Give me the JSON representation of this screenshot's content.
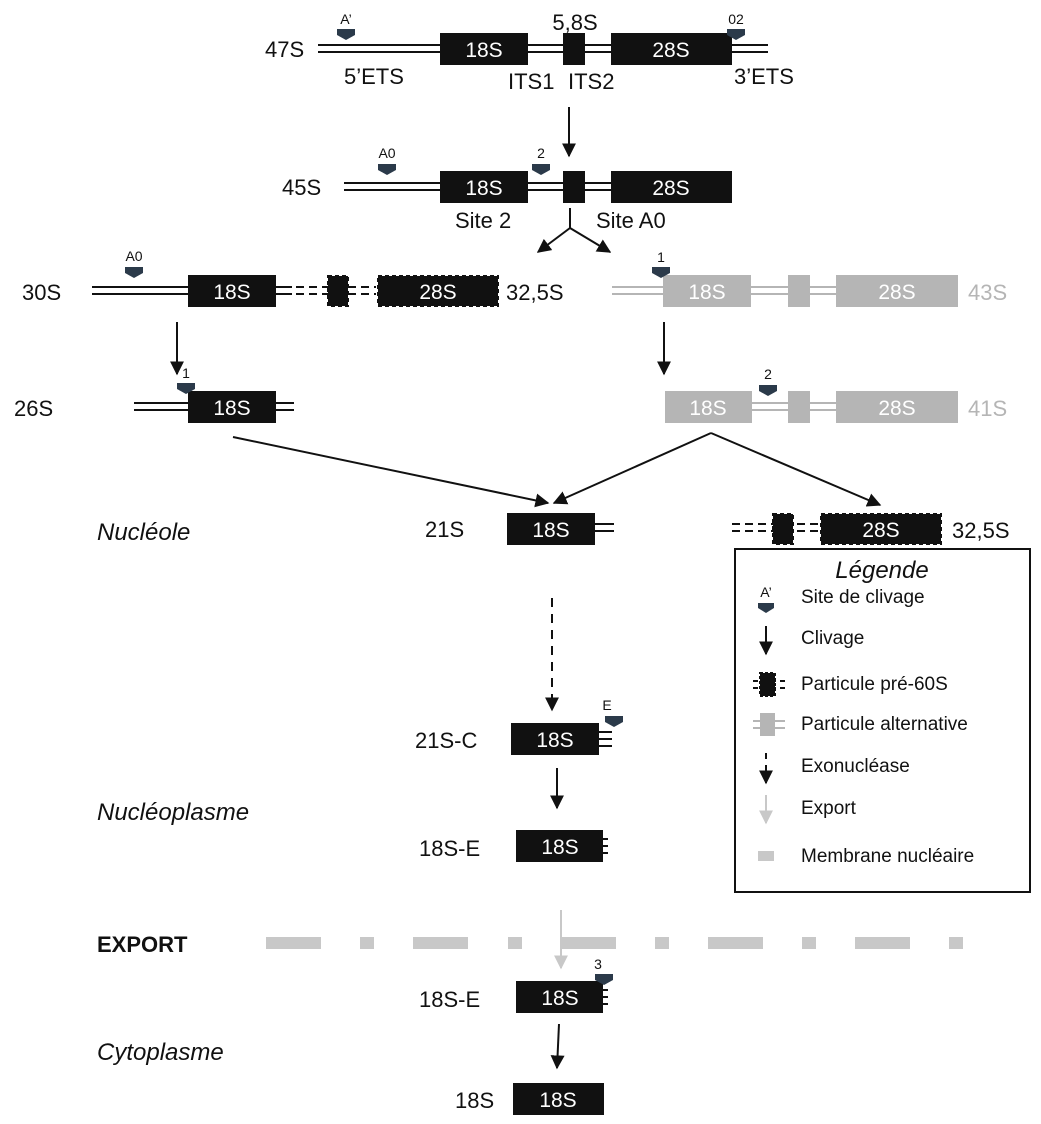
{
  "precursors": {
    "p47S": "47S",
    "p45S": "45S",
    "p30S": "30S",
    "p32_5S_a": "32,5S",
    "p43S": "43S",
    "p26S": "26S",
    "p41S": "41S",
    "p21S": "21S",
    "p32_5S_b": "32,5S",
    "p21SC": "21S-C",
    "p18SE_a": "18S-E",
    "p18SE_b": "18S-E",
    "p18S": "18S"
  },
  "boxes": {
    "s18": "18S",
    "s28": "28S",
    "s58": "5,8S"
  },
  "regions": {
    "ets5": "5’ETS",
    "its1": "ITS1",
    "its2": "ITS2",
    "ets3": "3’ETS",
    "site2": "Site 2",
    "siteA0": "Site A0"
  },
  "sites": {
    "a_prime": "A’",
    "o2": "02",
    "a0": "A0",
    "two": "2",
    "one": "1",
    "e": "E",
    "three": "3"
  },
  "compartments": {
    "nucleole": "Nucléole",
    "nucleoplasme": "Nucléoplasme",
    "export": "EXPORT",
    "cytoplasme": "Cytoplasme"
  },
  "legend": {
    "title": "Légende",
    "marker_label": "A’",
    "items": [
      "Site de clivage",
      "Clivage",
      "Particule pré-60S",
      "Particule alternative",
      "Exonucléase",
      "Export",
      "Membrane nucléaire"
    ]
  },
  "colors": {
    "black": "#111111",
    "grey": "#b5b5b5",
    "marker": "#2b3a4a"
  }
}
